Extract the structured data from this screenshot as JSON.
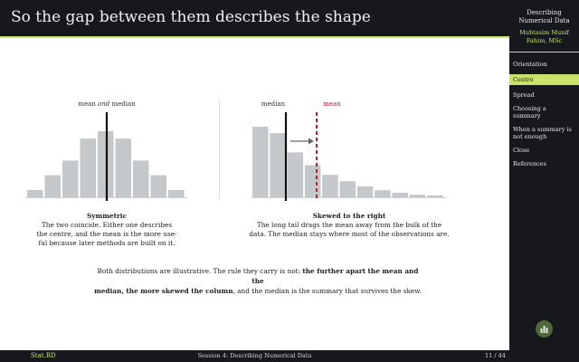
{
  "slide": {
    "title": "So the gap between them describes the shape"
  },
  "sidebar": {
    "deck_title": "Describing Numerical Data",
    "author": "Muhtasim Munif Fahim, MSc",
    "items": [
      {
        "label": "Orientation",
        "active": false
      },
      {
        "label": "Centre",
        "active": true
      },
      {
        "label": "Spread",
        "active": false
      },
      {
        "label": "Choosing a summary",
        "active": false
      },
      {
        "label": "When a summary is not enough",
        "active": false
      },
      {
        "label": "Close",
        "active": false
      },
      {
        "label": "References",
        "active": false
      }
    ]
  },
  "footer": {
    "left": "Stat.BD",
    "center": "Session 4: Describing Numerical Data",
    "page": "11 / 44"
  },
  "colors": {
    "accent": "#c7e36a",
    "dark": "#16181d",
    "bar": "#c4c8ca",
    "mean_line": "#b22234",
    "median_line": "#111111"
  },
  "symmetric": {
    "label_prefix": "mean ",
    "label_and": "and",
    "label_suffix": " median",
    "caption_title": "Symmetric",
    "caption_lines": [
      "The two coincide.  Either one describes",
      "the centre, and the mean is the more use-",
      "ful because later methods are built on it."
    ]
  },
  "skewed": {
    "median_label": "median",
    "mean_label": "mean",
    "caption_title": "Skewed to the right",
    "caption_lines": [
      "The long tail drags the mean away from the bulk of the",
      "data.  The median stays where most of the observations are."
    ]
  },
  "bottom": {
    "text_pre": "Both distributions are illustrative.  The rule they carry is not: ",
    "bold1": "the further apart the mean and the",
    "bold2": "median, the more skewed the column",
    "text_post": ", and the median is the summary that survives the skew."
  },
  "chart_data": [
    {
      "type": "bar",
      "title": "",
      "values": [
        1,
        3,
        5,
        8,
        9,
        8,
        5,
        3,
        1
      ],
      "annotations": [
        "mean and median"
      ],
      "note": "mean and median coincide at centre"
    },
    {
      "type": "bar",
      "title": "",
      "values": [
        11,
        10,
        7,
        5,
        3.5,
        2.5,
        1.7,
        1.1,
        0.7,
        0.4,
        0.3
      ],
      "annotations": [
        "median",
        "mean"
      ]
    }
  ]
}
